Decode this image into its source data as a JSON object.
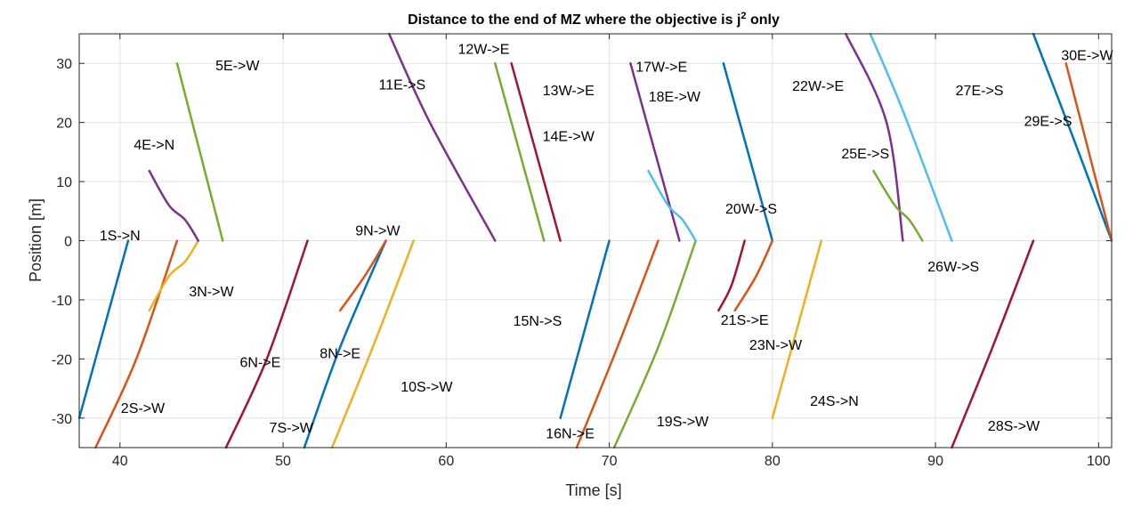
{
  "chart_data": {
    "type": "line",
    "title": "Distance to the end of MZ where the objective is j",
    "title_superscript": "2",
    "title_suffix": " only",
    "xlabel": "Time [s]",
    "ylabel": "Position [m]",
    "xlim": [
      37.5,
      100.8
    ],
    "ylim": [
      -35,
      35
    ],
    "xticks": [
      40,
      50,
      60,
      70,
      80,
      90,
      100
    ],
    "yticks": [
      -30,
      -20,
      -10,
      0,
      10,
      20,
      30
    ],
    "grid": true,
    "legend": "none",
    "series": [
      {
        "name": "1S->N",
        "color": "#0072BD",
        "points": [
          [
            37.5,
            -30
          ],
          [
            40.5,
            0
          ]
        ],
        "label_at": [
          40.0,
          1.0
        ]
      },
      {
        "name": "2S->W",
        "color": "#D95319",
        "points": [
          [
            38.5,
            -35
          ],
          [
            41,
            -20
          ],
          [
            43.5,
            0
          ]
        ],
        "label_at": [
          41.4,
          -28.2
        ]
      },
      {
        "name": "3N->W",
        "color": "#EDB120",
        "points": [
          [
            41.8,
            -11.8
          ],
          [
            43,
            -6
          ],
          [
            44,
            -3.5
          ],
          [
            44.8,
            0
          ]
        ],
        "label_at": [
          45.6,
          -8.5
        ]
      },
      {
        "name": "4E->N",
        "color": "#7E2F8E",
        "points": [
          [
            41.8,
            11.8
          ],
          [
            43,
            6
          ],
          [
            44,
            3.5
          ],
          [
            44.8,
            0
          ]
        ],
        "label_at": [
          42.1,
          16.3
        ]
      },
      {
        "name": "5E->W",
        "color": "#77AC30",
        "points": [
          [
            43.5,
            30
          ],
          [
            46.3,
            0
          ]
        ],
        "label_at": [
          47.2,
          29.7
        ]
      },
      {
        "name": "6N->E",
        "color": "#A2142F",
        "points": [
          [
            46.5,
            -35
          ],
          [
            49,
            -20
          ],
          [
            51.5,
            0
          ]
        ],
        "label_at": [
          48.6,
          -20.5
        ]
      },
      {
        "name": "7S->W",
        "color": "#A2142F",
        "points": [],
        "label_at": [
          50.5,
          -31.5
        ]
      },
      {
        "name": "8N->E",
        "color": "#0072BD",
        "points": [
          [
            51.3,
            -35
          ],
          [
            53.5,
            -18
          ],
          [
            56.3,
            0
          ]
        ],
        "label_at": [
          53.5,
          -19
        ]
      },
      {
        "name": "9N->W",
        "color": "#D95319",
        "points": [
          [
            53.5,
            -11.8
          ],
          [
            55,
            -6
          ],
          [
            56.3,
            0
          ]
        ],
        "label_at": [
          55.8,
          1.8
        ]
      },
      {
        "name": "10S->W",
        "color": "#EDB120",
        "points": [
          [
            53,
            -35
          ],
          [
            55.5,
            -18
          ],
          [
            58,
            0
          ]
        ],
        "label_at": [
          58.8,
          -24.6
        ]
      },
      {
        "name": "11E->S",
        "color": "#7E2F8E",
        "points": [
          [
            56.5,
            35
          ],
          [
            59,
            20
          ],
          [
            63,
            0
          ]
        ],
        "label_at": [
          57.3,
          26.5
        ]
      },
      {
        "name": "12W->E",
        "color": "#77AC30",
        "points": [
          [
            63,
            30
          ],
          [
            66,
            0
          ]
        ],
        "label_at": [
          62.3,
          32.5
        ]
      },
      {
        "name": "13W->E",
        "color": "#A2142F",
        "points": [
          [
            64,
            30
          ],
          [
            67,
            0
          ]
        ],
        "label_at": [
          67.5,
          25.5
        ]
      },
      {
        "name": "14E->W",
        "color": "#A2142F",
        "points": [],
        "label_at": [
          67.5,
          17.8
        ]
      },
      {
        "name": "15N->S",
        "color": "#0072BD",
        "points": [
          [
            67,
            -30
          ],
          [
            70,
            0
          ]
        ],
        "label_at": [
          65.6,
          -13.5
        ]
      },
      {
        "name": "16N->E",
        "color": "#D95319",
        "points": [
          [
            68,
            -35
          ],
          [
            70.5,
            -18
          ],
          [
            73,
            0
          ]
        ],
        "label_at": [
          67.6,
          -32.5
        ]
      },
      {
        "name": "17W->E",
        "color": "#7E2F8E",
        "points": [
          [
            71.3,
            30
          ],
          [
            74.3,
            0
          ]
        ],
        "label_at": [
          73.2,
          29.5
        ]
      },
      {
        "name": "18E->W",
        "color": "#7E2F8E",
        "points": [],
        "label_at": [
          74,
          24.5
        ]
      },
      {
        "name": "19S->W",
        "color": "#77AC30",
        "points": [
          [
            70.3,
            -35
          ],
          [
            73,
            -18
          ],
          [
            75.3,
            0
          ]
        ],
        "label_at": [
          74.5,
          -30.5
        ]
      },
      {
        "name": "20W->S",
        "color": "#4DBEEE",
        "points": [
          [
            72.4,
            11.8
          ],
          [
            73.6,
            6
          ],
          [
            74.5,
            3.5
          ],
          [
            75.3,
            0
          ]
        ],
        "label_at": [
          78.7,
          5.5
        ]
      },
      {
        "name": "21S->E",
        "color": "#A2142F",
        "points": [
          [
            76.7,
            -11.8
          ],
          [
            77.5,
            -7.5
          ],
          [
            78.3,
            0
          ]
        ],
        "label_at": [
          78.3,
          -13.3
        ]
      },
      {
        "name": "22W->E",
        "color": "#0072BD",
        "points": [
          [
            77,
            30
          ],
          [
            80,
            0
          ]
        ],
        "label_at": [
          82.8,
          26.3
        ]
      },
      {
        "name": "23N->W",
        "color": "#D95319",
        "points": [
          [
            77.7,
            -11.8
          ],
          [
            79,
            -6
          ],
          [
            80,
            0
          ]
        ],
        "label_at": [
          80.2,
          -17.5
        ]
      },
      {
        "name": "24S->N",
        "color": "#EDB120",
        "points": [
          [
            80,
            -30
          ],
          [
            83,
            0
          ]
        ],
        "label_at": [
          83.8,
          -27
        ]
      },
      {
        "name": "25E->S",
        "color": "#7E2F8E",
        "points": [
          [
            84.5,
            35
          ],
          [
            87,
            20
          ],
          [
            88,
            0
          ]
        ],
        "label_at": [
          85.7,
          14.8
        ]
      },
      {
        "name": "26W->S",
        "color": "#77AC30",
        "points": [
          [
            86.2,
            11.8
          ],
          [
            87.5,
            6
          ],
          [
            88.4,
            3.5
          ],
          [
            89.2,
            0
          ]
        ],
        "label_at": [
          91.1,
          -4.3
        ]
      },
      {
        "name": "27E->S",
        "color": "#4DBEEE",
        "points": [
          [
            86,
            35
          ],
          [
            88,
            22
          ],
          [
            91,
            0
          ]
        ],
        "label_at": [
          92.7,
          25.5
        ]
      },
      {
        "name": "28S->W",
        "color": "#A2142F",
        "points": [
          [
            91,
            -35
          ],
          [
            93.5,
            -18
          ],
          [
            96,
            0
          ]
        ],
        "label_at": [
          94.8,
          -31.2
        ]
      },
      {
        "name": "29E->S",
        "color": "#0072BD",
        "points": [
          [
            96,
            35
          ],
          [
            98.5,
            17
          ],
          [
            100.8,
            0
          ]
        ],
        "label_at": [
          96.9,
          20.3
        ]
      },
      {
        "name": "30E->W",
        "color": "#D95319",
        "points": [
          [
            98,
            30
          ],
          [
            100.8,
            0
          ]
        ],
        "label_at": [
          99.3,
          31.5
        ]
      }
    ]
  }
}
